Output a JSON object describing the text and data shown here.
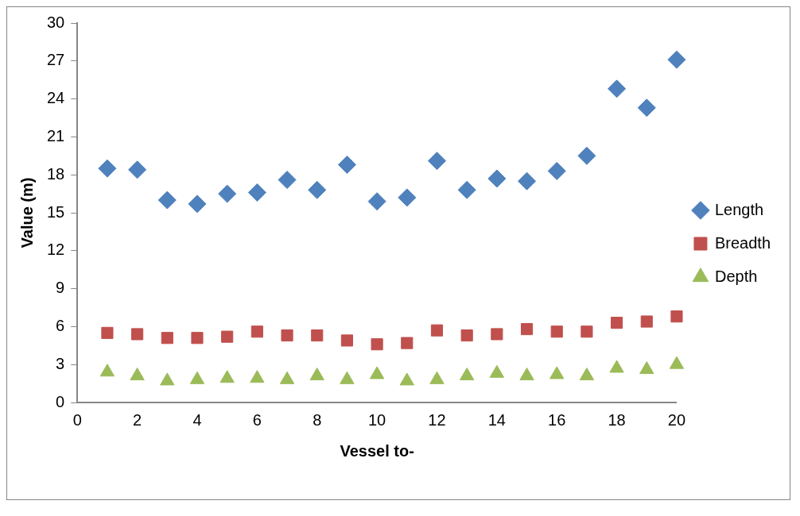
{
  "chart_data": {
    "type": "scatter",
    "xlabel": "Vessel to-",
    "ylabel": "Value (m)",
    "x": [
      1,
      2,
      3,
      4,
      5,
      6,
      7,
      8,
      9,
      10,
      11,
      12,
      13,
      14,
      15,
      16,
      17,
      18,
      19,
      20
    ],
    "series": [
      {
        "name": "Length",
        "color": "#4f81bd",
        "marker": "diamond",
        "values": [
          18.5,
          18.4,
          16.0,
          15.7,
          16.5,
          16.6,
          17.6,
          16.8,
          18.8,
          15.9,
          16.2,
          19.1,
          16.8,
          17.7,
          17.5,
          18.3,
          19.5,
          24.8,
          23.3,
          27.1
        ]
      },
      {
        "name": "Breadth",
        "color": "#c0504d",
        "marker": "square",
        "values": [
          5.5,
          5.4,
          5.1,
          5.1,
          5.2,
          5.6,
          5.3,
          5.3,
          4.9,
          4.6,
          4.7,
          5.7,
          5.3,
          5.4,
          5.8,
          5.6,
          5.6,
          6.3,
          6.4,
          6.8
        ]
      },
      {
        "name": "Depth",
        "color": "#9bbb59",
        "marker": "triangle",
        "values": [
          2.4,
          2.1,
          1.7,
          1.8,
          1.9,
          1.9,
          1.8,
          2.1,
          1.8,
          2.2,
          1.7,
          1.8,
          2.1,
          2.3,
          2.1,
          2.2,
          2.1,
          2.7,
          2.6,
          3.0
        ]
      }
    ],
    "xlim": [
      0,
      20
    ],
    "xticks": [
      0,
      2,
      4,
      6,
      8,
      10,
      12,
      14,
      16,
      18,
      20
    ],
    "ylim": [
      0,
      30
    ],
    "yticks": [
      0,
      3,
      6,
      9,
      12,
      15,
      18,
      21,
      24,
      27,
      30
    ],
    "grid": false,
    "legend": "right"
  }
}
